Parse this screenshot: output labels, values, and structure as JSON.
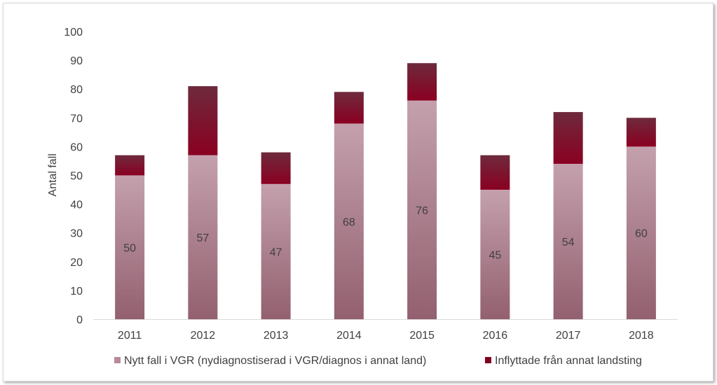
{
  "chart_data": {
    "type": "bar",
    "stacked": true,
    "categories": [
      "2011",
      "2012",
      "2013",
      "2014",
      "2015",
      "2016",
      "2017",
      "2018"
    ],
    "series": [
      {
        "name": "Nytt fall i VGR (nydiagnostiserad i VGR/diagnos i annat land)",
        "values": [
          50,
          57,
          47,
          68,
          76,
          45,
          54,
          60
        ],
        "color": "#b8899a",
        "data_labels": true
      },
      {
        "name": "Inflyttade från annat landsting",
        "values": [
          7,
          24,
          11,
          11,
          13,
          12,
          18,
          10
        ],
        "color": "#800020",
        "data_labels": false
      }
    ],
    "ylabel": "Antal fall",
    "xlabel": "",
    "ylim": [
      0,
      100
    ],
    "yticks": [
      0,
      10,
      20,
      30,
      40,
      50,
      60,
      70,
      80,
      90,
      100
    ],
    "grid": false,
    "legend_position": "bottom"
  }
}
